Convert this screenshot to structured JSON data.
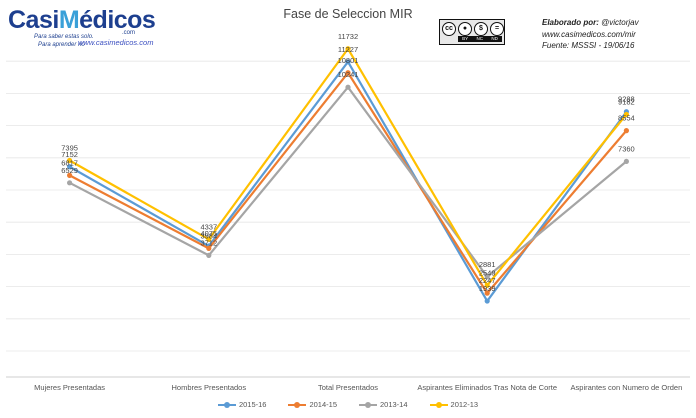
{
  "logo": {
    "prefix": "Casi",
    "highlight": "M",
    "suffix": "édicos",
    "domain": ".com",
    "tagline_1": "Para saber estas solo.",
    "tagline_2": "Para aprender no",
    "url": "www.casimedicos.com"
  },
  "license_badge": {
    "icon": "creative-commons-icon",
    "labels": [
      "BY",
      "NC",
      "ND"
    ]
  },
  "credits": {
    "lead": "Elaborado por:",
    "author": "@victorjav",
    "site": "www.casimedicos.com/mir",
    "source": "Fuente: MSSSI - 19/06/16"
  },
  "chart_data": {
    "type": "line",
    "title": "Fase de Seleccion MIR",
    "categories": [
      "Mujeres Presentadas",
      "Hombres Presentados",
      "Total Presentados",
      "Aspirantes Eliminados Tras Nota de Corte",
      "Aspirantes con Numero de Orden"
    ],
    "series": [
      {
        "name": "2015-16",
        "color": "#5b9bd5",
        "values": [
          7152,
          4075,
          11227,
          1939,
          9288
        ]
      },
      {
        "name": "2014-15",
        "color": "#ed7d31",
        "values": [
          6817,
          3984,
          10801,
          2247,
          8554
        ]
      },
      {
        "name": "2013-14",
        "color": "#a5a5a5",
        "values": [
          6529,
          3712,
          10241,
          2881,
          7360
        ]
      },
      {
        "name": "2012-13",
        "color": "#ffc000",
        "values": [
          7395,
          4337,
          11732,
          2549,
          9182
        ]
      }
    ],
    "displayed_labels": [
      [
        "7152",
        "4075",
        "11227",
        "1939",
        "9288"
      ],
      [
        "6817",
        "3984",
        "10801",
        "2247",
        "8554"
      ],
      [
        "6529",
        "3712",
        "10241",
        "2881",
        "7360"
      ],
      [
        "7395",
        "4337",
        "11732",
        "2549",
        "9182"
      ]
    ],
    "grid": true,
    "legend_position": "bottom"
  }
}
